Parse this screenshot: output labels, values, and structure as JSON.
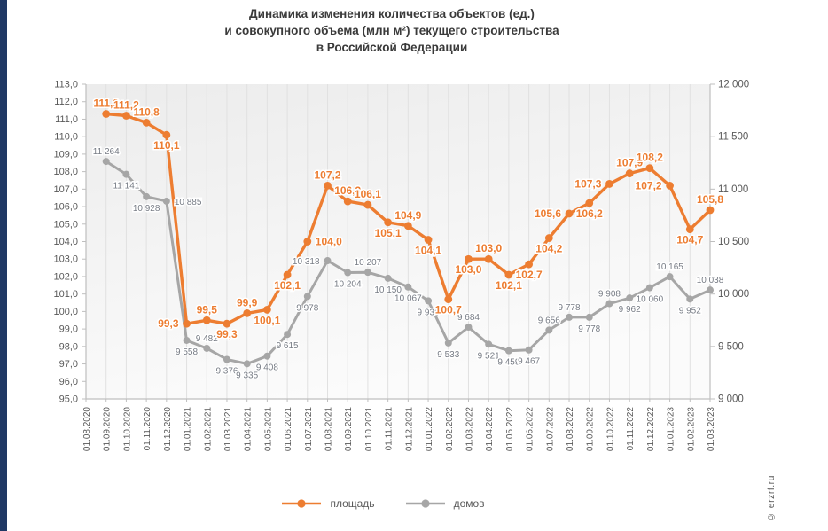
{
  "page": {
    "background": "#FFFFFF",
    "left_bar_color": "#1F3864",
    "watermark": "© erzrf.ru"
  },
  "chart_data": {
    "type": "line",
    "title_lines": [
      "Динамика изменения количества объектов (ед.)",
      "и совокупного объема (млн м²) текущего строительства",
      "в Российской Федерации"
    ],
    "categories": [
      "01.08.2020",
      "01.09.2020",
      "01.10.2020",
      "01.11.2020",
      "01.12.2020",
      "01.01.2021",
      "01.02.2021",
      "01.03.2021",
      "01.04.2021",
      "01.05.2021",
      "01.06.2021",
      "01.07.2021",
      "01.08.2021",
      "01.09.2021",
      "01.10.2021",
      "01.11.2021",
      "01.12.2021",
      "01.01.2022",
      "01.02.2022",
      "01.03.2022",
      "01.04.2022",
      "01.05.2022",
      "01.06.2022",
      "01.07.2022",
      "01.08.2022",
      "01.09.2022",
      "01.10.2022",
      "01.11.2022",
      "01.12.2022",
      "01.01.2023",
      "01.02.2023",
      "01.03.2023"
    ],
    "series": [
      {
        "name": "площадь",
        "axis": "left",
        "color": "#ED7D31",
        "label_color": "#ED7D31",
        "marker": "circle",
        "values": [
          null,
          111.3,
          111.2,
          110.8,
          110.1,
          99.3,
          99.5,
          99.3,
          99.9,
          100.1,
          102.1,
          104.0,
          107.2,
          106.3,
          106.1,
          105.1,
          104.9,
          104.1,
          100.7,
          103.0,
          103.0,
          102.1,
          102.7,
          104.2,
          105.6,
          106.2,
          107.3,
          107.9,
          108.2,
          107.2,
          104.7,
          105.8
        ],
        "labels": [
          "",
          "111,3",
          "111,2",
          "110,8",
          "110,1",
          "99,3",
          "99,5",
          "99,3",
          "99,9",
          "100,1",
          "102,1",
          "104,0",
          "107,2",
          "106,3",
          "106,1",
          "105,1",
          "104,9",
          "104,1",
          "100,7",
          "103,0",
          "103,0",
          "102,1",
          "102,7",
          "104,2",
          "105,6",
          "106,2",
          "107,3",
          "107,9",
          "108,2",
          "107,2",
          "104,7",
          "105,8"
        ],
        "label_side": [
          "",
          "above",
          "above",
          "above",
          "below",
          "left",
          "above",
          "below",
          "above",
          "below",
          "below",
          "right",
          "above",
          "above",
          "above",
          "below",
          "above",
          "below",
          "below",
          "below",
          "above",
          "below",
          "below",
          "below",
          "left",
          "below",
          "left",
          "above",
          "above",
          "left",
          "below",
          "above"
        ]
      },
      {
        "name": "домов",
        "axis": "right",
        "color": "#A6A6A6",
        "label_color": "#777C85",
        "marker": "circle",
        "values": [
          null,
          11264,
          11141,
          10928,
          10885,
          9558,
          9482,
          9376,
          9335,
          9408,
          9615,
          9978,
          10318,
          10204,
          10207,
          10150,
          10067,
          9935,
          9533,
          9684,
          9521,
          9459,
          9467,
          9656,
          9778,
          9778,
          9908,
          9962,
          10060,
          10165,
          9952,
          10038
        ],
        "labels": [
          "",
          "11 264",
          "11 141",
          "10 928",
          "10 885",
          "9 558",
          "9 482",
          "9 376",
          "9 335",
          "9 408",
          "9 615",
          "9 978",
          "10 318",
          "10 204",
          "10 207",
          "10 150",
          "10 067",
          "9 935",
          "9 533",
          "9 684",
          "9 521",
          "9 459",
          "9 467",
          "9 656",
          "9 778",
          "9 778",
          "9 908",
          "9 962",
          "10 060",
          "10 165",
          "9 952",
          "10 038"
        ],
        "label_side": [
          "",
          "above",
          "below",
          "below",
          "right",
          "below",
          "above",
          "below",
          "below",
          "below",
          "below",
          "below",
          "left",
          "below",
          "above",
          "below",
          "below",
          "below",
          "below",
          "above",
          "below",
          "below",
          "below",
          "above",
          "above",
          "below",
          "above",
          "below",
          "below",
          "above",
          "below",
          "above"
        ]
      }
    ],
    "left_axis": {
      "min": 95,
      "max": 113,
      "step": 1,
      "tick_labels": [
        "113,0",
        "112,0",
        "111,0",
        "110,0",
        "109,0",
        "108,0",
        "107,0",
        "106,0",
        "105,0",
        "104,0",
        "103,0",
        "102,0",
        "101,0",
        "100,0",
        "99,0",
        "98,0",
        "97,0",
        "96,0",
        "95,0"
      ]
    },
    "right_axis": {
      "min": 9000,
      "max": 12000,
      "step": 500,
      "tick_labels": [
        "12 000",
        "11 500",
        "11 000",
        "10 500",
        "10 000",
        "9 500",
        "9 000"
      ]
    },
    "grid": "vertical-light",
    "legend_position": "bottom-center"
  }
}
